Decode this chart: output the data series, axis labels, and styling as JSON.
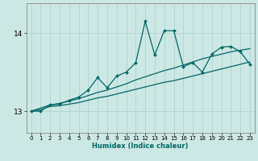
{
  "xlabel": "Humidex (Indice chaleur)",
  "background_color": "#cce8e4",
  "line_color": "#006666",
  "grid_color": "#aacfcc",
  "xlim": [
    -0.5,
    23.5
  ],
  "ylim": [
    12.72,
    14.38
  ],
  "yticks": [
    13,
    14
  ],
  "xticks": [
    0,
    1,
    2,
    3,
    4,
    5,
    6,
    7,
    8,
    9,
    10,
    11,
    12,
    13,
    14,
    15,
    16,
    17,
    18,
    19,
    20,
    21,
    22,
    23
  ],
  "x": [
    0,
    1,
    2,
    3,
    4,
    5,
    6,
    7,
    8,
    9,
    10,
    11,
    12,
    13,
    14,
    15,
    16,
    17,
    18,
    19,
    20,
    21,
    22,
    23
  ],
  "line_smooth_low": [
    13.0,
    13.02,
    13.06,
    13.07,
    13.09,
    13.11,
    13.14,
    13.17,
    13.19,
    13.22,
    13.25,
    13.28,
    13.31,
    13.34,
    13.37,
    13.39,
    13.42,
    13.45,
    13.48,
    13.51,
    13.54,
    13.57,
    13.6,
    13.63
  ],
  "line_smooth_high": [
    13.0,
    13.04,
    13.08,
    13.1,
    13.13,
    13.16,
    13.2,
    13.24,
    13.27,
    13.31,
    13.35,
    13.4,
    13.44,
    13.48,
    13.52,
    13.55,
    13.59,
    13.63,
    13.67,
    13.7,
    13.73,
    13.76,
    13.78,
    13.8
  ],
  "line_jagged": [
    13.0,
    13.0,
    13.08,
    13.09,
    13.14,
    13.18,
    13.27,
    13.43,
    13.3,
    13.45,
    13.5,
    13.62,
    14.15,
    13.72,
    14.03,
    14.03,
    13.57,
    13.62,
    13.5,
    13.73,
    13.82,
    13.83,
    13.76,
    13.6
  ]
}
